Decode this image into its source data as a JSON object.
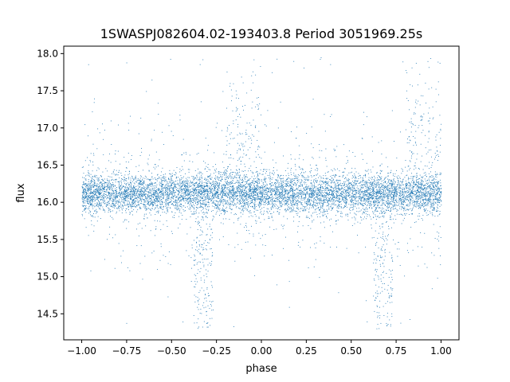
{
  "chart_data": {
    "type": "scatter",
    "title": "1SWASPJ082604.02-193403.8 Period 3051969.25s",
    "xlabel": "phase",
    "ylabel": "flux",
    "xlim": [
      -1.1,
      1.1
    ],
    "ylim": [
      14.15,
      18.1
    ],
    "xticks": [
      -1.0,
      -0.75,
      -0.5,
      -0.25,
      0.0,
      0.25,
      0.5,
      0.75,
      1.0
    ],
    "xtick_labels": [
      "−1.00",
      "−0.75",
      "−0.50",
      "−0.25",
      "0.00",
      "0.25",
      "0.50",
      "0.75",
      "1.00"
    ],
    "yticks": [
      14.5,
      15.0,
      15.5,
      16.0,
      16.5,
      17.0,
      17.5,
      18.0
    ],
    "ytick_labels": [
      "14.5",
      "15.0",
      "15.5",
      "16.0",
      "16.5",
      "17.0",
      "17.5",
      "18.0"
    ],
    "grid": false,
    "legend": "none",
    "marker_color": "#1f77b4",
    "bands": [
      {
        "x": [
          -1.0,
          1.0
        ],
        "y_center": 16.12,
        "y_spread": 0.13,
        "share": 0.82
      },
      {
        "x": [
          -1.0,
          1.0
        ],
        "y_center": 16.1,
        "y_spread": 0.45,
        "share": 0.1
      },
      {
        "x": [
          -0.38,
          -0.27
        ],
        "y_center": 15.2,
        "y_spread": 0.55,
        "share": 0.02
      },
      {
        "x": [
          0.62,
          0.73
        ],
        "y_center": 15.2,
        "y_spread": 0.55,
        "share": 0.02
      },
      {
        "x": [
          -0.2,
          0.0
        ],
        "y_center": 16.9,
        "y_spread": 0.45,
        "share": 0.015
      },
      {
        "x": [
          0.8,
          1.0
        ],
        "y_center": 16.9,
        "y_spread": 0.45,
        "share": 0.015
      },
      {
        "x": [
          -1.0,
          1.0
        ],
        "y_center": 16.4,
        "y_spread": 1.2,
        "share": 0.01
      }
    ],
    "n_points": 9000
  }
}
